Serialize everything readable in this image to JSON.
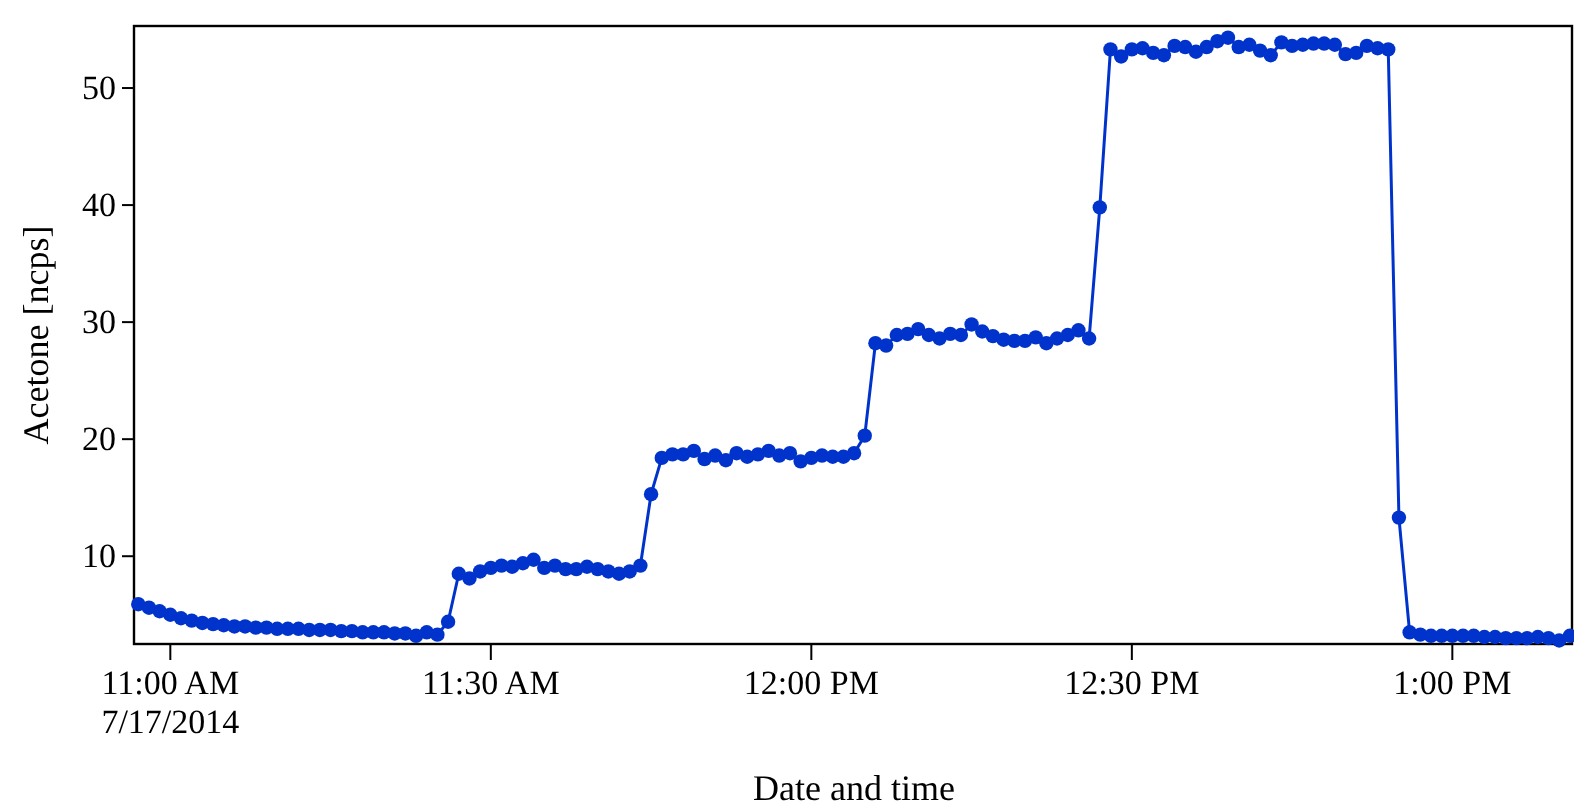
{
  "chart_data": {
    "type": "line",
    "xlabel": "Date and time",
    "ylabel": "Acetone [ncps]",
    "xlim": [
      "2014-07-17T10:56:36",
      "2014-07-17T13:11:12"
    ],
    "xticks": [
      {
        "value": "2014-07-17T11:00",
        "label": "11:00 AM\n7/17/2014"
      },
      {
        "value": "2014-07-17T11:30",
        "label": "11:30 AM"
      },
      {
        "value": "2014-07-17T12:00",
        "label": "12:00 PM"
      },
      {
        "value": "2014-07-17T12:30",
        "label": "12:30 PM"
      },
      {
        "value": "2014-07-17T13:00",
        "label": "1:00 PM"
      }
    ],
    "ylim": [
      2.5,
      55.3
    ],
    "yticks": [
      10,
      20,
      30,
      40,
      50
    ],
    "grid": false,
    "marker": "circle",
    "line_style": "solid",
    "x": [
      "2014-07-17T10:57",
      "2014-07-17T10:58",
      "2014-07-17T10:59",
      "2014-07-17T11:00",
      "2014-07-17T11:01",
      "2014-07-17T11:02",
      "2014-07-17T11:03",
      "2014-07-17T11:04",
      "2014-07-17T11:05",
      "2014-07-17T11:06",
      "2014-07-17T11:07",
      "2014-07-17T11:08",
      "2014-07-17T11:09",
      "2014-07-17T11:10",
      "2014-07-17T11:11",
      "2014-07-17T11:12",
      "2014-07-17T11:13",
      "2014-07-17T11:14",
      "2014-07-17T11:15",
      "2014-07-17T11:16",
      "2014-07-17T11:17",
      "2014-07-17T11:18",
      "2014-07-17T11:19",
      "2014-07-17T11:20",
      "2014-07-17T11:21",
      "2014-07-17T11:22",
      "2014-07-17T11:23",
      "2014-07-17T11:24",
      "2014-07-17T11:25",
      "2014-07-17T11:26",
      "2014-07-17T11:27",
      "2014-07-17T11:28",
      "2014-07-17T11:29",
      "2014-07-17T11:30",
      "2014-07-17T11:31",
      "2014-07-17T11:32",
      "2014-07-17T11:33",
      "2014-07-17T11:34",
      "2014-07-17T11:35",
      "2014-07-17T11:36",
      "2014-07-17T11:37",
      "2014-07-17T11:38",
      "2014-07-17T11:39",
      "2014-07-17T11:40",
      "2014-07-17T11:41",
      "2014-07-17T11:42",
      "2014-07-17T11:43",
      "2014-07-17T11:44",
      "2014-07-17T11:45",
      "2014-07-17T11:46",
      "2014-07-17T11:47",
      "2014-07-17T11:48",
      "2014-07-17T11:49",
      "2014-07-17T11:50",
      "2014-07-17T11:51",
      "2014-07-17T11:52",
      "2014-07-17T11:53",
      "2014-07-17T11:54",
      "2014-07-17T11:55",
      "2014-07-17T11:56",
      "2014-07-17T11:57",
      "2014-07-17T11:58",
      "2014-07-17T11:59",
      "2014-07-17T12:00",
      "2014-07-17T12:01",
      "2014-07-17T12:02",
      "2014-07-17T12:03",
      "2014-07-17T12:04",
      "2014-07-17T12:05",
      "2014-07-17T12:06",
      "2014-07-17T12:07",
      "2014-07-17T12:08",
      "2014-07-17T12:09",
      "2014-07-17T12:10",
      "2014-07-17T12:11",
      "2014-07-17T12:12",
      "2014-07-17T12:13",
      "2014-07-17T12:14",
      "2014-07-17T12:15",
      "2014-07-17T12:16",
      "2014-07-17T12:17",
      "2014-07-17T12:18",
      "2014-07-17T12:19",
      "2014-07-17T12:20",
      "2014-07-17T12:21",
      "2014-07-17T12:22",
      "2014-07-17T12:23",
      "2014-07-17T12:24",
      "2014-07-17T12:25",
      "2014-07-17T12:26",
      "2014-07-17T12:27",
      "2014-07-17T12:28",
      "2014-07-17T12:29",
      "2014-07-17T12:30",
      "2014-07-17T12:31",
      "2014-07-17T12:32",
      "2014-07-17T12:33",
      "2014-07-17T12:34",
      "2014-07-17T12:35",
      "2014-07-17T12:36",
      "2014-07-17T12:37",
      "2014-07-17T12:38",
      "2014-07-17T12:39",
      "2014-07-17T12:40",
      "2014-07-17T12:41",
      "2014-07-17T12:42",
      "2014-07-17T12:43",
      "2014-07-17T12:44",
      "2014-07-17T12:45",
      "2014-07-17T12:46",
      "2014-07-17T12:47",
      "2014-07-17T12:48",
      "2014-07-17T12:49",
      "2014-07-17T12:50",
      "2014-07-17T12:51",
      "2014-07-17T12:52",
      "2014-07-17T12:53",
      "2014-07-17T12:54",
      "2014-07-17T12:55",
      "2014-07-17T12:56",
      "2014-07-17T12:57",
      "2014-07-17T12:58",
      "2014-07-17T12:59",
      "2014-07-17T13:00",
      "2014-07-17T13:01",
      "2014-07-17T13:02",
      "2014-07-17T13:03",
      "2014-07-17T13:04",
      "2014-07-17T13:05",
      "2014-07-17T13:06",
      "2014-07-17T13:07",
      "2014-07-17T13:08",
      "2014-07-17T13:09",
      "2014-07-17T13:10",
      "2014-07-17T13:11"
    ],
    "series": [
      {
        "color": "#0033cc",
        "values": [
          5.9,
          5.6,
          5.3,
          5.0,
          4.7,
          4.5,
          4.3,
          4.2,
          4.1,
          4.0,
          4.0,
          3.9,
          3.9,
          3.8,
          3.8,
          3.8,
          3.7,
          3.7,
          3.7,
          3.6,
          3.6,
          3.5,
          3.5,
          3.5,
          3.4,
          3.4,
          3.2,
          3.5,
          3.3,
          4.4,
          8.5,
          8.1,
          8.7,
          9.0,
          9.2,
          9.1,
          9.4,
          9.7,
          9.0,
          9.2,
          8.9,
          8.9,
          9.1,
          8.9,
          8.7,
          8.5,
          8.7,
          9.2,
          15.3,
          18.4,
          18.7,
          18.7,
          19.0,
          18.3,
          18.6,
          18.2,
          18.8,
          18.5,
          18.7,
          19.0,
          18.6,
          18.8,
          18.1,
          18.4,
          18.6,
          18.5,
          18.5,
          18.8,
          20.3,
          28.2,
          28.0,
          28.9,
          29.0,
          29.4,
          28.9,
          28.6,
          29.0,
          28.9,
          29.8,
          29.2,
          28.8,
          28.5,
          28.4,
          28.4,
          28.7,
          28.2,
          28.6,
          28.9,
          29.3,
          28.6,
          39.8,
          53.3,
          52.7,
          53.3,
          53.4,
          53.0,
          52.8,
          53.6,
          53.5,
          53.1,
          53.5,
          54.0,
          54.3,
          53.5,
          53.7,
          53.2,
          52.8,
          53.9,
          53.6,
          53.7,
          53.8,
          53.8,
          53.7,
          52.9,
          53.0,
          53.6,
          53.4,
          53.3,
          13.3,
          3.5,
          3.3,
          3.2,
          3.2,
          3.2,
          3.2,
          3.2,
          3.1,
          3.1,
          3.0,
          3.0,
          3.0,
          3.1,
          3.0,
          2.8,
          3.2
        ]
      }
    ]
  }
}
